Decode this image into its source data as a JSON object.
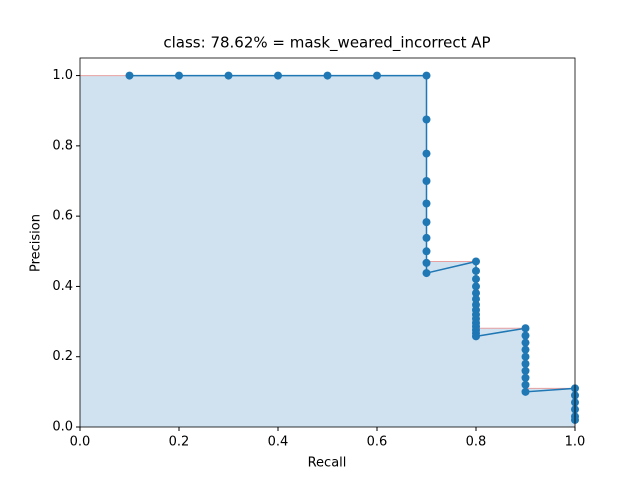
{
  "chart_data": {
    "type": "line",
    "title": "class: 78.62% = mask_weared_incorrect AP",
    "xlabel": "Recall",
    "ylabel": "Precision",
    "xlim": [
      0,
      1
    ],
    "ylim": [
      0,
      1.05
    ],
    "xticks": [
      {
        "value": 0,
        "label": "0.0"
      },
      {
        "value": 0.2,
        "label": "0.2"
      },
      {
        "value": 0.4,
        "label": "0.4"
      },
      {
        "value": 0.6,
        "label": "0.6"
      },
      {
        "value": 0.8,
        "label": "0.8"
      },
      {
        "value": 1,
        "label": "1.0"
      }
    ],
    "yticks": [
      {
        "value": 0,
        "label": "0.0"
      },
      {
        "value": 0.2,
        "label": "0.2"
      },
      {
        "value": 0.4,
        "label": "0.4"
      },
      {
        "value": 0.6,
        "label": "0.6"
      },
      {
        "value": 0.8,
        "label": "0.8"
      },
      {
        "value": 1,
        "label": "1.0"
      }
    ],
    "area": {
      "color": "#d0e2f0",
      "edge": "#e8a0a0",
      "x": [
        0,
        0.7,
        0.7,
        0.8,
        0.8,
        0.9,
        0.9,
        1.0,
        1.0
      ],
      "values": [
        1,
        1,
        0.471,
        0.471,
        0.281,
        0.281,
        0.11,
        0.11,
        0
      ]
    },
    "series": [
      {
        "color": "#1f77b4",
        "x": [
          0.1,
          0.2,
          0.3,
          0.4,
          0.5,
          0.6,
          0.7,
          0.7,
          0.7,
          0.7,
          0.7,
          0.7,
          0.7,
          0.7,
          0.7,
          0.7,
          0.8,
          0.8,
          0.8,
          0.8,
          0.8,
          0.8,
          0.8,
          0.8,
          0.8,
          0.8,
          0.8,
          0.8,
          0.8,
          0.8,
          0.8,
          0.9,
          0.9,
          0.9,
          0.9,
          0.9,
          0.9,
          0.9,
          0.9,
          0.9,
          0.9,
          1.0,
          1.0,
          1.0,
          1.0,
          1.0,
          1.0
        ],
        "values": [
          1,
          1,
          1,
          1,
          1,
          1,
          1,
          0.875,
          0.778,
          0.7,
          0.636,
          0.583,
          0.538,
          0.5,
          0.467,
          0.438,
          0.471,
          0.444,
          0.421,
          0.4,
          0.381,
          0.364,
          0.348,
          0.333,
          0.32,
          0.308,
          0.296,
          0.286,
          0.276,
          0.267,
          0.258,
          0.281,
          0.26,
          0.24,
          0.22,
          0.2,
          0.18,
          0.16,
          0.14,
          0.12,
          0.1,
          0.11,
          0.09,
          0.07,
          0.05,
          0.03,
          0.02
        ]
      }
    ]
  }
}
